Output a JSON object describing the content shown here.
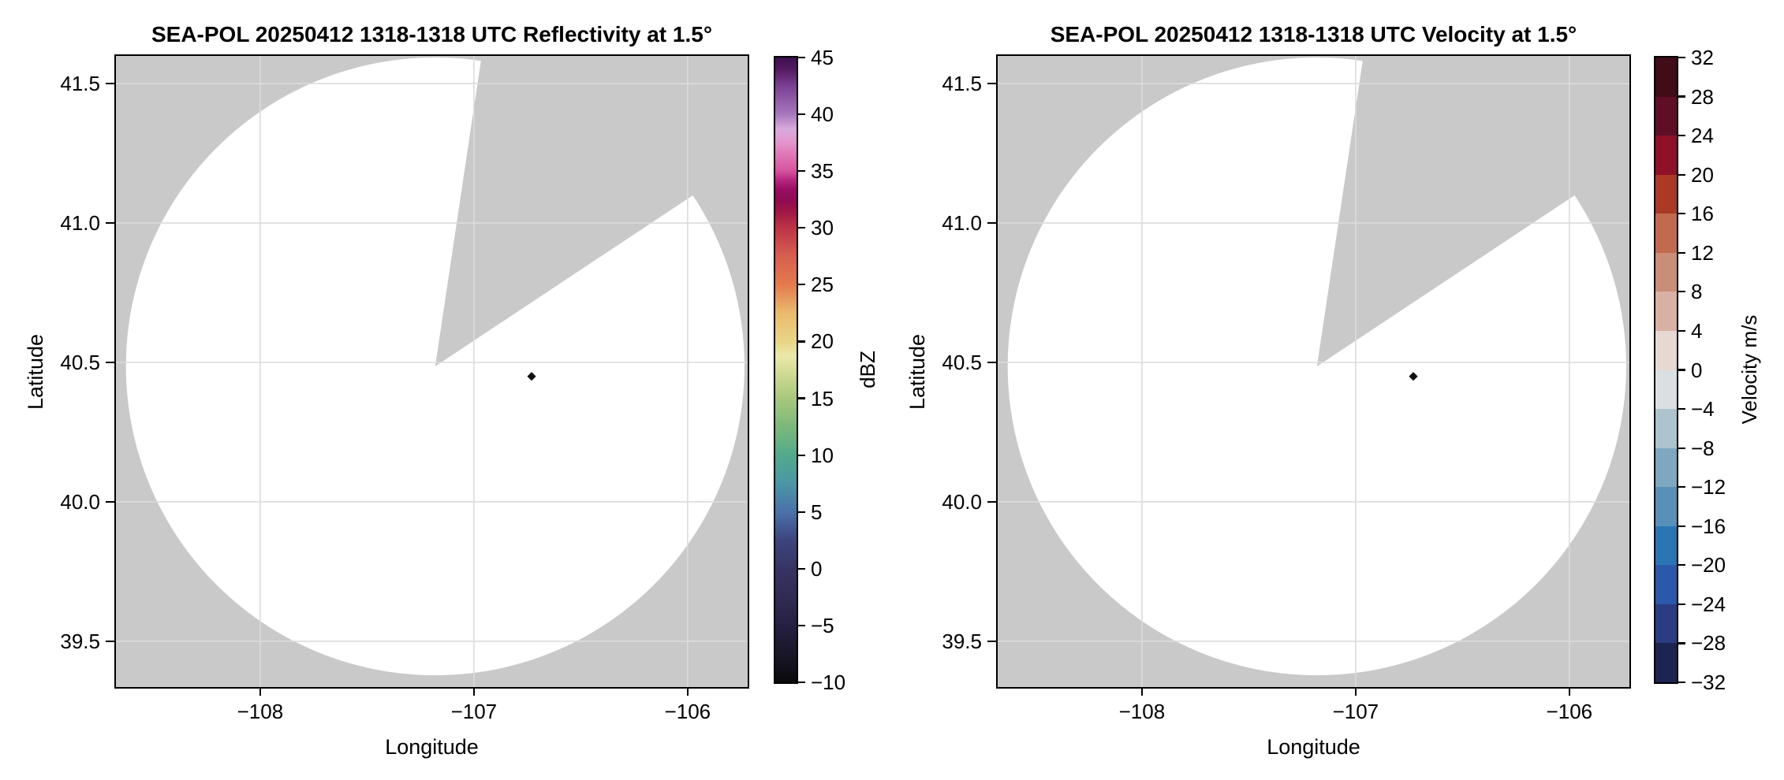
{
  "figure": {
    "background": "#ffffff",
    "text_color": "#000000",
    "plot_bg_gray": "#c9c9c9",
    "grid_color": "#dcdcdc",
    "coverage_fill": "#ffffff",
    "echo_marker_color": "#111111",
    "echo_marker_shape": "diamond"
  },
  "chart_data": [
    {
      "type": "heatmap",
      "variant": "radar-ppi-map",
      "title": "SEA-POL 20250412 1318-1318 UTC Reflectivity at 1.5°",
      "xlabel": "Longitude",
      "ylabel": "Latitude",
      "xlim": [
        -108.675,
        -105.719
      ],
      "ylim": [
        39.336,
        41.599
      ],
      "grid": true,
      "xticks": {
        "values": [
          -108,
          -107,
          -106
        ],
        "labels": [
          "−108",
          "−107",
          "−106"
        ]
      },
      "yticks": {
        "values": [
          41.5,
          41.0,
          40.5,
          40.0,
          39.5
        ],
        "labels": [
          "41.5",
          "41.0",
          "40.5",
          "40.0",
          "39.5"
        ]
      },
      "radar": {
        "center_lon": -107.181,
        "center_lat": 40.486,
        "coverage_radius_deg_lon": 1.447,
        "missing_sector_azimuth_deg": [
          8.5,
          56.4
        ]
      },
      "echo_points": [
        {
          "lon": -106.73,
          "lat": 40.45,
          "color": "black"
        }
      ],
      "colorbar": {
        "label": "dBZ",
        "min": -10,
        "max": 45,
        "style": "gradient",
        "ticks": {
          "values": [
            45,
            40,
            35,
            30,
            25,
            20,
            15,
            10,
            5,
            0,
            -5,
            -10
          ],
          "labels": [
            "45",
            "40",
            "35",
            "30",
            "25",
            "20",
            "15",
            "10",
            "5",
            "0",
            "−5",
            "−10"
          ]
        },
        "gradient_stops": [
          {
            "value": -10,
            "color": "#0a0a0c"
          },
          {
            "value": -7.5,
            "color": "#191627"
          },
          {
            "value": -5,
            "color": "#262041"
          },
          {
            "value": -2.5,
            "color": "#302b52"
          },
          {
            "value": 0,
            "color": "#373464"
          },
          {
            "value": 2.5,
            "color": "#3d447e"
          },
          {
            "value": 5,
            "color": "#4a72a9"
          },
          {
            "value": 7.5,
            "color": "#4b96a6"
          },
          {
            "value": 10,
            "color": "#53a98b"
          },
          {
            "value": 12.5,
            "color": "#7bb97b"
          },
          {
            "value": 15,
            "color": "#a8c87d"
          },
          {
            "value": 17.5,
            "color": "#d5dd96"
          },
          {
            "value": 18.7,
            "color": "#eae8ab"
          },
          {
            "value": 20,
            "color": "#e9d685"
          },
          {
            "value": 22.5,
            "color": "#eaba6e"
          },
          {
            "value": 25,
            "color": "#e37b4e"
          },
          {
            "value": 27.5,
            "color": "#d65f4e"
          },
          {
            "value": 30,
            "color": "#bd3346"
          },
          {
            "value": 31.5,
            "color": "#9e1547"
          },
          {
            "value": 32.5,
            "color": "#8e0b51"
          },
          {
            "value": 33.5,
            "color": "#9c1066"
          },
          {
            "value": 34.3,
            "color": "#b92b82"
          },
          {
            "value": 35,
            "color": "#d6539c"
          },
          {
            "value": 36.5,
            "color": "#e078b8"
          },
          {
            "value": 37.5,
            "color": "#e295ca"
          },
          {
            "value": 38.7,
            "color": "#d9abdc"
          },
          {
            "value": 40,
            "color": "#a578bd"
          },
          {
            "value": 42.5,
            "color": "#7b4094"
          },
          {
            "value": 44,
            "color": "#52195f"
          },
          {
            "value": 45,
            "color": "#3c1150"
          }
        ]
      }
    },
    {
      "type": "heatmap",
      "variant": "radar-ppi-map",
      "title": "SEA-POL 20250412 1318-1318 UTC Velocity at 1.5°",
      "xlabel": "Longitude",
      "ylabel": "Latitude",
      "xlim": [
        -108.675,
        -105.719
      ],
      "ylim": [
        39.336,
        41.599
      ],
      "grid": true,
      "xticks": {
        "values": [
          -108,
          -107,
          -106
        ],
        "labels": [
          "−108",
          "−107",
          "−106"
        ]
      },
      "yticks": {
        "values": [
          41.5,
          41.0,
          40.5,
          40.0,
          39.5
        ],
        "labels": [
          "41.5",
          "41.0",
          "40.5",
          "40.0",
          "39.5"
        ]
      },
      "radar": {
        "center_lon": -107.181,
        "center_lat": 40.486,
        "coverage_radius_deg_lon": 1.447,
        "missing_sector_azimuth_deg": [
          8.5,
          56.4
        ]
      },
      "echo_points": [
        {
          "lon": -106.73,
          "lat": 40.45,
          "color": "black"
        }
      ],
      "colorbar": {
        "label": "Velocity m/s",
        "min": -32,
        "max": 32,
        "style": "bands",
        "ticks": {
          "values": [
            32,
            28,
            24,
            20,
            16,
            12,
            8,
            4,
            0,
            -4,
            -8,
            -12,
            -16,
            -20,
            -24,
            -28,
            -32
          ],
          "labels": [
            "32",
            "28",
            "24",
            "20",
            "16",
            "12",
            "8",
            "4",
            "0",
            "−4",
            "−8",
            "−12",
            "−16",
            "−20",
            "−24",
            "−28",
            "−32"
          ]
        },
        "bands_top_to_bottom": [
          {
            "from": 28,
            "to": 32,
            "color": "#3f0c17"
          },
          {
            "from": 24,
            "to": 28,
            "color": "#5e0f26"
          },
          {
            "from": 20,
            "to": 24,
            "color": "#8e1127"
          },
          {
            "from": 16,
            "to": 20,
            "color": "#aa3a26"
          },
          {
            "from": 12,
            "to": 16,
            "color": "#c16a50"
          },
          {
            "from": 8,
            "to": 12,
            "color": "#ca8d78"
          },
          {
            "from": 4,
            "to": 8,
            "color": "#d9b0a5"
          },
          {
            "from": 0,
            "to": 4,
            "color": "#e6d8d3"
          },
          {
            "from": -4,
            "to": 0,
            "color": "#dadfe2"
          },
          {
            "from": -8,
            "to": -4,
            "color": "#adc3ce"
          },
          {
            "from": -12,
            "to": -8,
            "color": "#7da8bf"
          },
          {
            "from": -16,
            "to": -12,
            "color": "#5890ba"
          },
          {
            "from": -20,
            "to": -16,
            "color": "#2a76b5"
          },
          {
            "from": -24,
            "to": -20,
            "color": "#2b58aa"
          },
          {
            "from": -28,
            "to": -24,
            "color": "#2b3c80"
          },
          {
            "from": -32,
            "to": -28,
            "color": "#1e2452"
          }
        ]
      }
    }
  ]
}
